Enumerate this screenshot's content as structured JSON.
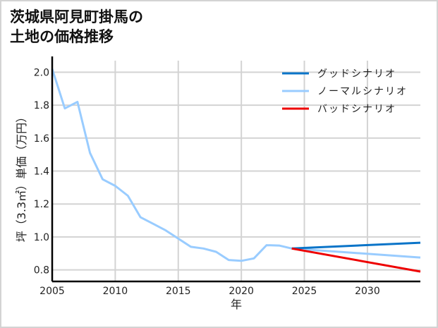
{
  "title": {
    "line1": "茨城県阿見町掛馬の",
    "line2": "土地の価格推移"
  },
  "colors": {
    "good": "#0a74c8",
    "normal": "#99ccff",
    "bad": "#ee0000",
    "grid": "#d3d3d3",
    "axis": "#000000"
  },
  "chart_data": {
    "type": "line",
    "title": "茨城県阿見町掛馬の土地の価格推移",
    "xlabel": "年",
    "ylabel": "坪（3.3㎡）単価（万円）",
    "xlim": [
      2005,
      2034.2
    ],
    "ylim": [
      0.73,
      2.07
    ],
    "xticks": [
      2005,
      2010,
      2015,
      2020,
      2025,
      2030
    ],
    "yticks": [
      0.8,
      1.0,
      1.2,
      1.4,
      1.6,
      1.8,
      2.0
    ],
    "ytick_labels": [
      "0.8",
      "1.0",
      "1.2",
      "1.4",
      "1.6",
      "1.8",
      "2.0"
    ],
    "grid": true,
    "legend_position": "upper right",
    "series": [
      {
        "name": "グッドシナリオ",
        "color": "#0a74c8",
        "x": [
          2024,
          2034.2
        ],
        "values": [
          0.93,
          0.965
        ]
      },
      {
        "name": "ノーマルシナリオ",
        "color": "#99ccff",
        "x": [
          2005,
          2006,
          2007,
          2008,
          2009,
          2010,
          2011,
          2012,
          2013,
          2014,
          2015,
          2016,
          2017,
          2018,
          2019,
          2020,
          2021,
          2022,
          2023,
          2024,
          2034.2
        ],
        "values": [
          2.02,
          1.78,
          1.82,
          1.51,
          1.35,
          1.31,
          1.25,
          1.12,
          1.08,
          1.04,
          0.99,
          0.94,
          0.93,
          0.91,
          0.86,
          0.855,
          0.87,
          0.95,
          0.948,
          0.93,
          0.875
        ]
      },
      {
        "name": "バッドシナリオ",
        "color": "#ee0000",
        "x": [
          2024,
          2034.2
        ],
        "values": [
          0.93,
          0.79
        ]
      }
    ]
  }
}
